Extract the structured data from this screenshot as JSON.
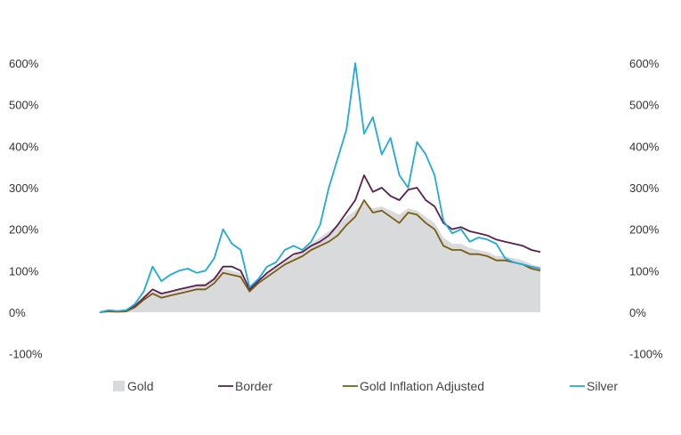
{
  "chart_data": {
    "type": "line",
    "title": "",
    "xlabel": "",
    "ylabel": "",
    "ylim": [
      -100,
      600
    ],
    "yticks": [
      "600%",
      "500%",
      "400%",
      "300%",
      "200%",
      "100%",
      "0%",
      "-100%"
    ],
    "ytick_values": [
      600,
      500,
      400,
      300,
      200,
      100,
      0,
      -100
    ],
    "legend_position": "bottom",
    "grid": false,
    "x_count": 51,
    "series": [
      {
        "name": "Gold",
        "kind": "area",
        "color": "#d9dadb",
        "values": [
          0,
          2,
          2,
          3,
          14,
          35,
          50,
          45,
          50,
          55,
          60,
          65,
          70,
          85,
          105,
          100,
          95,
          60,
          80,
          95,
          110,
          125,
          135,
          150,
          165,
          180,
          195,
          210,
          230,
          245,
          265,
          250,
          255,
          245,
          235,
          250,
          245,
          230,
          215,
          180,
          165,
          165,
          155,
          150,
          145,
          135,
          135,
          130,
          125,
          115,
          110
        ]
      },
      {
        "name": "Border",
        "kind": "line",
        "color": "#5a1f4f",
        "values": [
          0,
          3,
          2,
          3,
          15,
          35,
          55,
          45,
          50,
          55,
          60,
          65,
          65,
          80,
          110,
          110,
          100,
          55,
          75,
          95,
          110,
          125,
          140,
          145,
          160,
          170,
          185,
          210,
          240,
          270,
          330,
          290,
          300,
          280,
          270,
          295,
          300,
          270,
          255,
          215,
          200,
          205,
          195,
          190,
          185,
          175,
          170,
          165,
          160,
          150,
          145
        ]
      },
      {
        "name": "Gold Inflation Adjusted",
        "kind": "line",
        "color": "#7a5c12",
        "values": [
          0,
          2,
          1,
          2,
          12,
          30,
          45,
          35,
          40,
          45,
          50,
          55,
          55,
          70,
          95,
          90,
          85,
          50,
          70,
          85,
          100,
          115,
          125,
          135,
          150,
          160,
          170,
          185,
          210,
          230,
          270,
          240,
          245,
          230,
          215,
          240,
          235,
          215,
          200,
          160,
          150,
          150,
          140,
          140,
          135,
          125,
          125,
          120,
          115,
          105,
          100
        ]
      },
      {
        "name": "Silver",
        "kind": "line",
        "color": "#1fa9de",
        "values": [
          0,
          5,
          3,
          5,
          20,
          50,
          110,
          75,
          90,
          100,
          105,
          95,
          100,
          130,
          200,
          165,
          150,
          60,
          80,
          110,
          120,
          150,
          160,
          150,
          170,
          210,
          300,
          370,
          440,
          600,
          430,
          470,
          380,
          420,
          330,
          300,
          410,
          380,
          330,
          220,
          190,
          200,
          170,
          180,
          175,
          165,
          130,
          120,
          115,
          110,
          105
        ]
      }
    ]
  }
}
